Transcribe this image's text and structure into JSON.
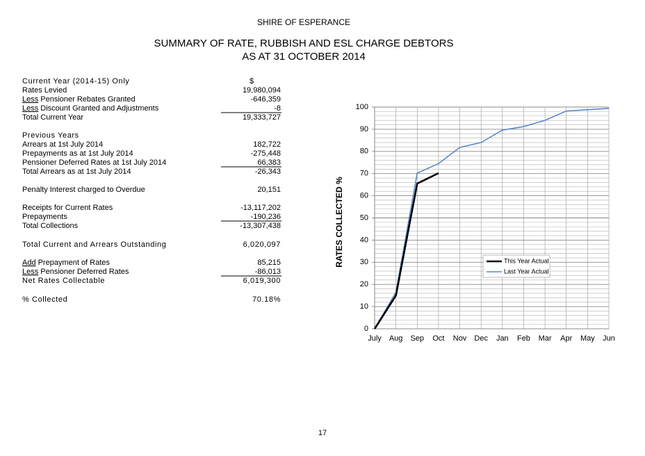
{
  "header": {
    "organisation": "SHIRE OF ESPERANCE",
    "title_lines": [
      "SUMMARY OF RATE, RUBBISH AND ESL CHARGE DEBTORS",
      "AS AT 31 OCTOBER 2014"
    ]
  },
  "table": {
    "rows": [
      {
        "label": "Current Year (2014-15) Only",
        "value": "$"
      },
      {
        "label": "Rates Levied",
        "value": "19,980,094"
      },
      {
        "prefix": "Less",
        "label": "Pensioner Rebates Granted",
        "value": "-646,359"
      },
      {
        "prefix": "Less",
        "label": "Discount Granted and Adjustments",
        "value": "-8"
      },
      {
        "label": "Total Current Year",
        "value": "19,333,727"
      },
      {
        "label": "Previous Years"
      },
      {
        "label": "Arrears at 1st July 2014",
        "value": "182,722"
      },
      {
        "label": "Prepayments as at 1st July 2014",
        "value": "-275,448"
      },
      {
        "label": "Pensioner Deferred Rates at 1st July 2014",
        "value": "66,383"
      },
      {
        "label": "Total Arrears as at 1st July 2014",
        "value": "-26,343"
      },
      {
        "label": "Penalty Interest charged to Overdue",
        "value": "20,151"
      },
      {
        "label": "Receipts for Current Rates",
        "value": "-13,117,202"
      },
      {
        "label": "Prepayments",
        "value": "-190,236"
      },
      {
        "label": "Total Collections",
        "value": "-13,307,438"
      },
      {
        "label": "Total Current and Arrears Outstanding",
        "value": "6,020,097"
      },
      {
        "prefix": "Add",
        "label": "Prepayment of Rates",
        "value": "85,215"
      },
      {
        "prefix": "Less",
        "label": "Pensioner Deferred Rates",
        "value": "-86,013"
      },
      {
        "label": "Net Rates Collectable",
        "value": "6,019,300"
      },
      {
        "label": "% Collected",
        "value": "70.18%"
      }
    ]
  },
  "chart_data": {
    "type": "line",
    "ylabel": "RATES COLLECTED %",
    "categories": [
      "July",
      "Aug",
      "Sep",
      "Oct",
      "Nov",
      "Dec",
      "Jan",
      "Feb",
      "Mar",
      "Apr",
      "May",
      "Jun"
    ],
    "series": [
      {
        "name": "This Year Actual",
        "color": "#000000",
        "values": [
          0,
          15,
          65.5,
          70.18,
          null,
          null,
          null,
          null,
          null,
          null,
          null,
          null
        ]
      },
      {
        "name": "Last Year Actual",
        "color": "#5a88c8",
        "values": [
          0,
          16.5,
          70.2,
          74.5,
          81.8,
          84,
          89.6,
          91.2,
          94,
          98.2,
          98.8,
          99.4
        ]
      }
    ],
    "ylim": [
      0,
      100
    ],
    "yticks": [
      0,
      10,
      20,
      30,
      40,
      50,
      60,
      70,
      80,
      90,
      100
    ],
    "minor_yticks": [
      2,
      4,
      6,
      8,
      12,
      14,
      16,
      18,
      22,
      24,
      26,
      28,
      32,
      34,
      36,
      38,
      42,
      44,
      46,
      48,
      52,
      54,
      56,
      58,
      62,
      64,
      66,
      68,
      72,
      74,
      76,
      78,
      82,
      84,
      86,
      88,
      92,
      94,
      96,
      98
    ],
    "grid": true,
    "legend": "right"
  },
  "page_number": "17"
}
